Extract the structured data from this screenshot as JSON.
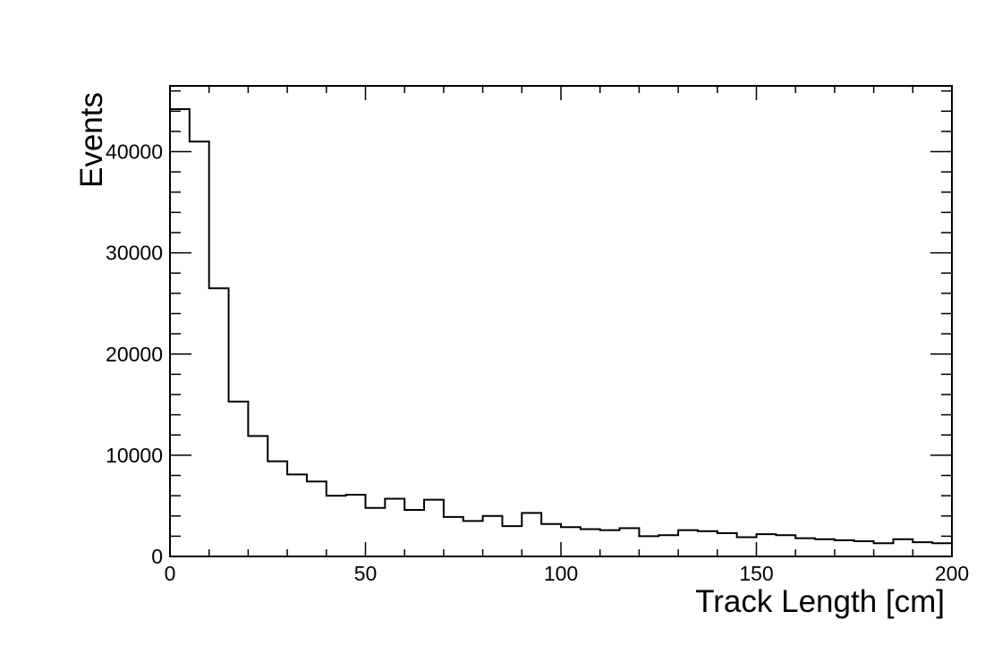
{
  "chart_data": {
    "type": "bar",
    "title": "",
    "xlabel": "Track Length [cm]",
    "ylabel": "Events",
    "xlim": [
      0,
      200
    ],
    "ylim": [
      0,
      46500
    ],
    "grid": false,
    "histogram_style": "step",
    "line_color": "#000000",
    "x_ticks": [
      0,
      50,
      100,
      150,
      200
    ],
    "x_tick_labels": [
      "0",
      "50",
      "100",
      "150",
      "200"
    ],
    "y_ticks": [
      0,
      10000,
      20000,
      30000,
      40000
    ],
    "y_tick_labels": [
      "0",
      "10000",
      "20000",
      "30000",
      "40000"
    ],
    "bin_edges": [
      0,
      5,
      10,
      15,
      20,
      25,
      30,
      35,
      40,
      45,
      50,
      55,
      60,
      65,
      70,
      75,
      80,
      85,
      90,
      95,
      100,
      105,
      110,
      115,
      120,
      125,
      130,
      135,
      140,
      145,
      150,
      155,
      160,
      165,
      170,
      175,
      180,
      185,
      190,
      195,
      200
    ],
    "values": [
      44200,
      41000,
      26500,
      15300,
      11900,
      9400,
      8100,
      7400,
      6000,
      6100,
      4800,
      5700,
      4600,
      5600,
      3900,
      3500,
      4000,
      3000,
      4300,
      3200,
      2900,
      2700,
      2600,
      2800,
      2000,
      2100,
      2600,
      2500,
      2300,
      1900,
      2200,
      2100,
      1800,
      1700,
      1600,
      1500,
      1300,
      1700,
      1400,
      1300
    ]
  }
}
